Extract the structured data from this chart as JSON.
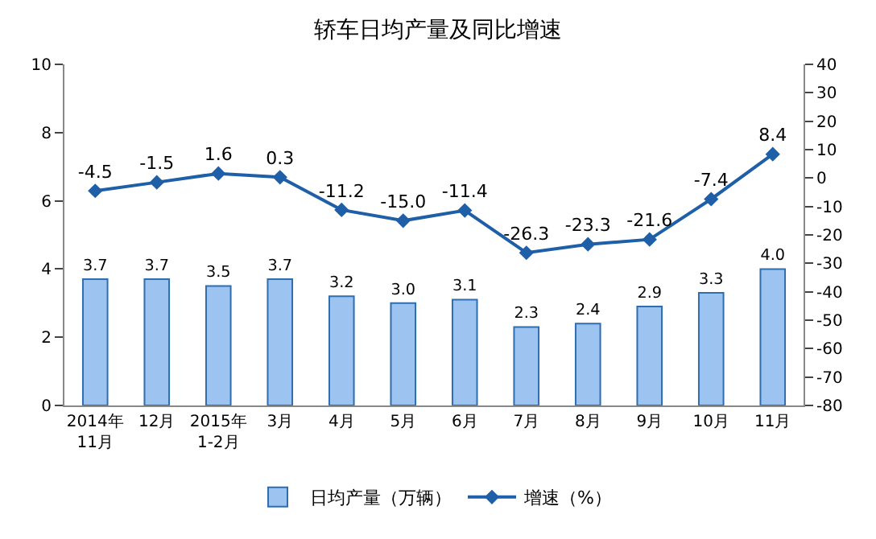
{
  "chart_data": {
    "type": "bar",
    "title": "轿车日均产量及同比增速",
    "categories": [
      "2014年\n11月",
      "12月",
      "2015年\n1-2月",
      "3月",
      "4月",
      "5月",
      "6月",
      "7月",
      "8月",
      "9月",
      "10月",
      "11月"
    ],
    "series": [
      {
        "name": "日均产量（万辆）",
        "color": "#9dc3f0",
        "values": [
          3.7,
          3.7,
          3.5,
          3.7,
          3.2,
          3.0,
          3.1,
          2.3,
          2.4,
          2.9,
          3.3,
          4.0
        ],
        "value_labels": [
          "3.7",
          "3.7",
          "3.5",
          "3.7",
          "3.2",
          "3.0",
          "3.1",
          "2.3",
          "2.4",
          "2.9",
          "3.3",
          "4.0"
        ]
      },
      {
        "name": "增速（%）",
        "type": "line",
        "axis": "y2",
        "color": "#1f5fa8",
        "marker": "diamond",
        "values": [
          -4.5,
          -1.5,
          1.6,
          0.3,
          -11.2,
          -15.0,
          -11.4,
          -26.3,
          -23.3,
          -21.6,
          -7.4,
          8.4
        ],
        "value_labels": [
          "-4.5",
          "-1.5",
          "1.6",
          "0.3",
          "-11.2",
          "-15.0",
          "-11.4",
          "-26.3",
          "-23.3",
          "-21.6",
          "-7.4",
          "8.4"
        ]
      }
    ],
    "ylim": [
      0,
      10
    ],
    "yticks": [
      0,
      2,
      4,
      6,
      8,
      10
    ],
    "y2lim": [
      -80,
      40
    ],
    "y2ticks": [
      -80,
      -70,
      -60,
      -50,
      -40,
      -30,
      -20,
      -10,
      0,
      10,
      20,
      30,
      40
    ],
    "legend": "bottom"
  }
}
